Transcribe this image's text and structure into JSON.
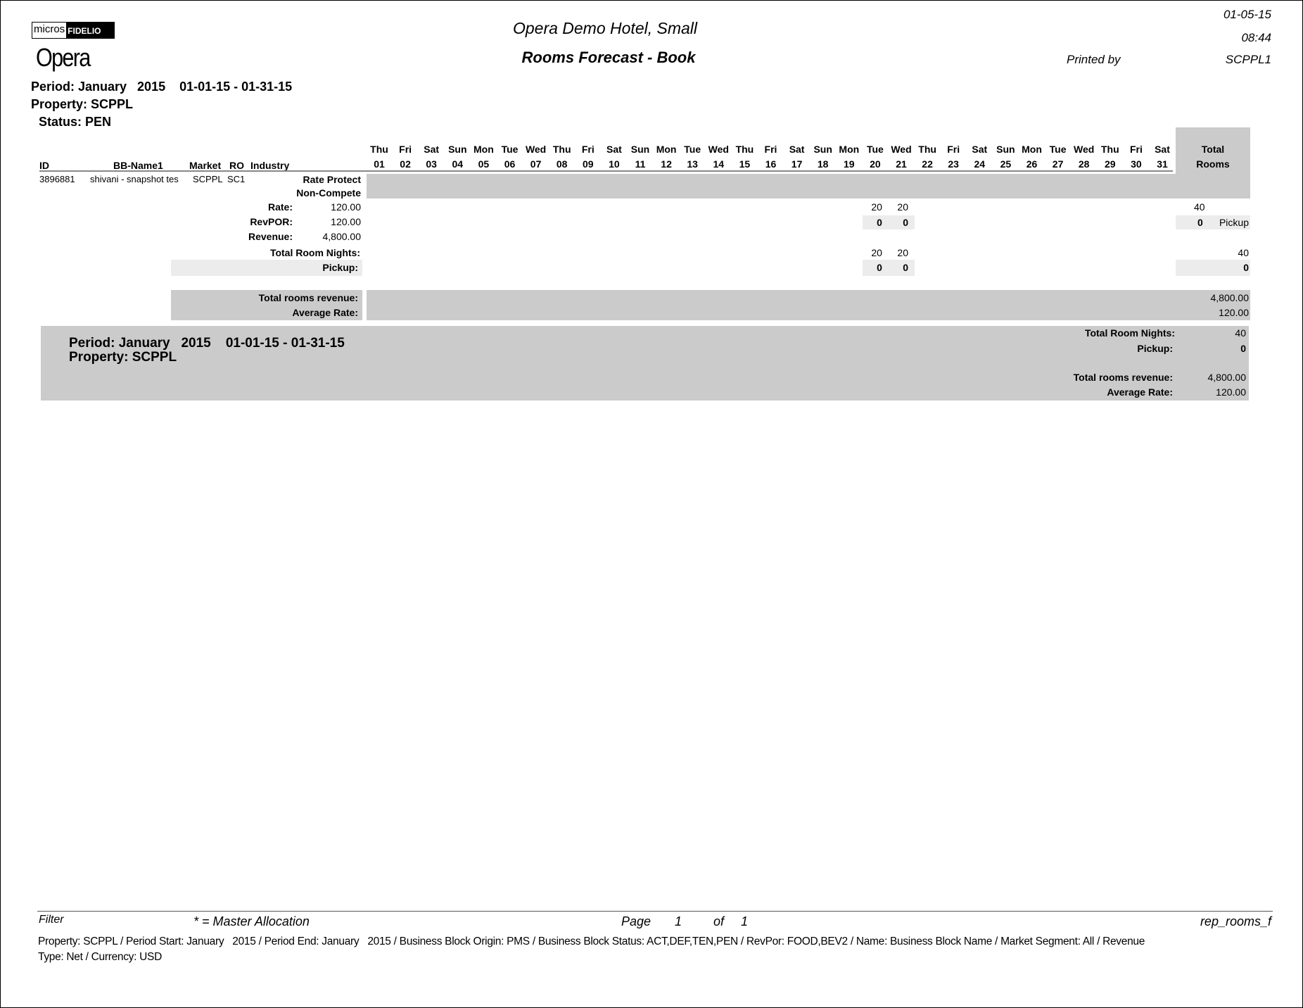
{
  "header": {
    "logo_micros": "micros",
    "logo_fidelio": "FIDELIO",
    "logo_opera": "Opera",
    "hotel_name": "Opera Demo Hotel, Small",
    "report_title": "Rooms Forecast - Book",
    "print_date": "01-05-15",
    "print_time": "08:44",
    "printed_by_label": "Printed by",
    "printed_by": "SCPPL1",
    "period": "Period: January   2015    01-01-15 - 01-31-15",
    "property": "Property: SCPPL",
    "status": "Status: PEN"
  },
  "columns": {
    "id": "ID",
    "name": "BB-Name1",
    "market": "Market",
    "ro": "RO",
    "industry": "Industry",
    "total_line1": "Total",
    "total_line2": "Rooms"
  },
  "days": [
    {
      "dow": "Thu",
      "day": "01"
    },
    {
      "dow": "Fri",
      "day": "02"
    },
    {
      "dow": "Sat",
      "day": "03"
    },
    {
      "dow": "Sun",
      "day": "04"
    },
    {
      "dow": "Mon",
      "day": "05"
    },
    {
      "dow": "Tue",
      "day": "06"
    },
    {
      "dow": "Wed",
      "day": "07"
    },
    {
      "dow": "Thu",
      "day": "08"
    },
    {
      "dow": "Fri",
      "day": "09"
    },
    {
      "dow": "Sat",
      "day": "10"
    },
    {
      "dow": "Sun",
      "day": "11"
    },
    {
      "dow": "Mon",
      "day": "12"
    },
    {
      "dow": "Tue",
      "day": "13"
    },
    {
      "dow": "Wed",
      "day": "14"
    },
    {
      "dow": "Thu",
      "day": "15"
    },
    {
      "dow": "Fri",
      "day": "16"
    },
    {
      "dow": "Sat",
      "day": "17"
    },
    {
      "dow": "Sun",
      "day": "18"
    },
    {
      "dow": "Mon",
      "day": "19"
    },
    {
      "dow": "Tue",
      "day": "20"
    },
    {
      "dow": "Wed",
      "day": "21"
    },
    {
      "dow": "Thu",
      "day": "22"
    },
    {
      "dow": "Fri",
      "day": "23"
    },
    {
      "dow": "Sat",
      "day": "24"
    },
    {
      "dow": "Sun",
      "day": "25"
    },
    {
      "dow": "Mon",
      "day": "26"
    },
    {
      "dow": "Tue",
      "day": "27"
    },
    {
      "dow": "Wed",
      "day": "28"
    },
    {
      "dow": "Thu",
      "day": "29"
    },
    {
      "dow": "Fri",
      "day": "30"
    },
    {
      "dow": "Sat",
      "day": "31"
    }
  ],
  "block": {
    "id": "3896881",
    "name": "shivani - snapshot tes",
    "market": "SCPPL",
    "ro": "SC1",
    "flag1": "Rate Protect",
    "flag2": "Non-Compete",
    "rate_label": "Rate:",
    "rate": "120.00",
    "revpor_label": "RevPOR:",
    "revpor": "120.00",
    "revenue_label": "Revenue:",
    "revenue": "4,800.00",
    "rooms_by_day": {
      "20": "20",
      "21": "20"
    },
    "pickup_by_day": {
      "20": "0",
      "21": "0"
    },
    "rooms_total": "40",
    "pickup_total": "0",
    "pickup_word": "Pickup",
    "trn_label": "Total Room Nights:",
    "trn_by_day": {
      "20": "20",
      "21": "20"
    },
    "trn_total": "40",
    "pickup_label": "Pickup:",
    "pickup2_by_day": {
      "20": "0",
      "21": "0"
    },
    "pickup2_total": "0",
    "trr_label": "Total rooms revenue:",
    "trr": "4,800.00",
    "avg_label": "Average Rate:",
    "avg": "120.00"
  },
  "summary": {
    "period": "Period: January   2015    01-01-15 - 01-31-15",
    "property": "Property: SCPPL",
    "trn_label": "Total Room Nights:",
    "trn": "40",
    "pickup_label": "Pickup:",
    "pickup": "0",
    "trr_label": "Total rooms revenue:",
    "trr": "4,800.00",
    "avg_label": "Average Rate:",
    "avg": "120.00"
  },
  "footer": {
    "filter": "Filter",
    "legend": "* = Master Allocation",
    "page_label": "Page",
    "page": "1",
    "of_label": "of",
    "pages": "1",
    "report_id": "rep_rooms_f",
    "params_line1": "Property: SCPPL / Period Start: January   2015 / Period End: January   2015 / Business Block Origin: PMS / Business Block Status: ACT,DEF,TEN,PEN / RevPor: FOOD,BEV2 / Name: Business Block Name / Market Segment: All / Revenue",
    "params_line2": "Type: Net / Currency: USD"
  },
  "colors": {
    "band": "#cbcbcb",
    "light_band": "#ececec"
  }
}
